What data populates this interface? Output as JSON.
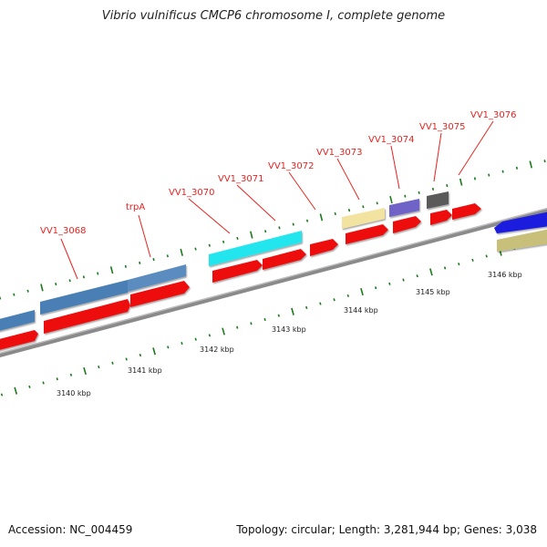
{
  "title": "Vibrio vulnificus CMCP6 chromosome I, complete genome",
  "footer": {
    "accession": "Accession: NC_004459",
    "topology": "Topology: circular; Length: 3,281,944 bp; Genes: 3,038"
  },
  "gene_labels": [
    "VV1_3068",
    "trpA",
    "VV1_3070",
    "VV1_3071",
    "VV1_3072",
    "VV1_3073",
    "VV1_3074",
    "VV1_3075",
    "VV1_3076"
  ],
  "kbp_labels": [
    "3140 kbp",
    "3141 kbp",
    "3142 kbp",
    "3143 kbp",
    "3144 kbp",
    "3145 kbp",
    "3146 kbp"
  ],
  "colors": {
    "backbone": "#8a8a8a",
    "cds": "#ee1111",
    "label": "#e8231f",
    "tick": "#1c7a1c",
    "blue_feature": "#4a7fb5",
    "cyan_feature": "#22e5ee",
    "yellow_feature": "#f2e3a0",
    "purple_feature": "#7064c8",
    "gray_feature": "#5a5a5a",
    "navy_feature": "#1a1adf",
    "olive_feature": "#c8c07a"
  }
}
